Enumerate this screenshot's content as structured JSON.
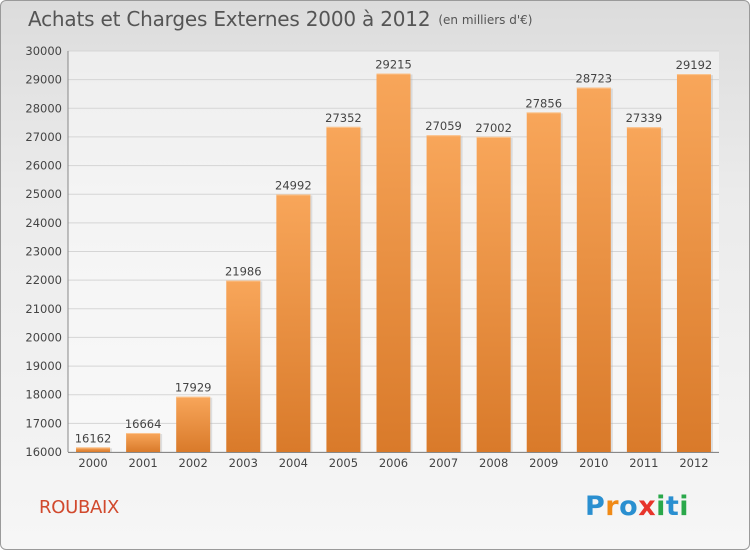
{
  "title": "Achats et Charges Externes 2000 à 2012",
  "unit_note": "(en milliers d'€)",
  "location": "ROUBAIX",
  "brand": {
    "letters": [
      "P",
      "r",
      "o",
      "x",
      "i",
      "t",
      "i"
    ],
    "colors": [
      "#2a8fd0",
      "#f08a16",
      "#2a8fd0",
      "#e7342b",
      "#2aa84a",
      "#2a8fd0",
      "#2aa84a"
    ]
  },
  "colors": {
    "bar_light": "#f8a65a",
    "bar_dark": "#d97a2a",
    "text": "#444444",
    "grid": "#d5d5d5"
  },
  "chart_data": {
    "type": "bar",
    "title": "Achats et Charges Externes 2000 à 2012",
    "categories": [
      "2000",
      "2001",
      "2002",
      "2003",
      "2004",
      "2005",
      "2006",
      "2007",
      "2008",
      "2009",
      "2010",
      "2011",
      "2012"
    ],
    "values": [
      16162,
      16664,
      17929,
      21986,
      24992,
      27352,
      29215,
      27059,
      27002,
      27856,
      28723,
      27339,
      29192
    ],
    "ylim": [
      16000,
      30000
    ],
    "yticks": [
      16000,
      17000,
      18000,
      19000,
      20000,
      21000,
      22000,
      23000,
      24000,
      25000,
      26000,
      27000,
      28000,
      29000,
      30000
    ],
    "grid": true,
    "xlabel": "",
    "ylabel": ""
  }
}
